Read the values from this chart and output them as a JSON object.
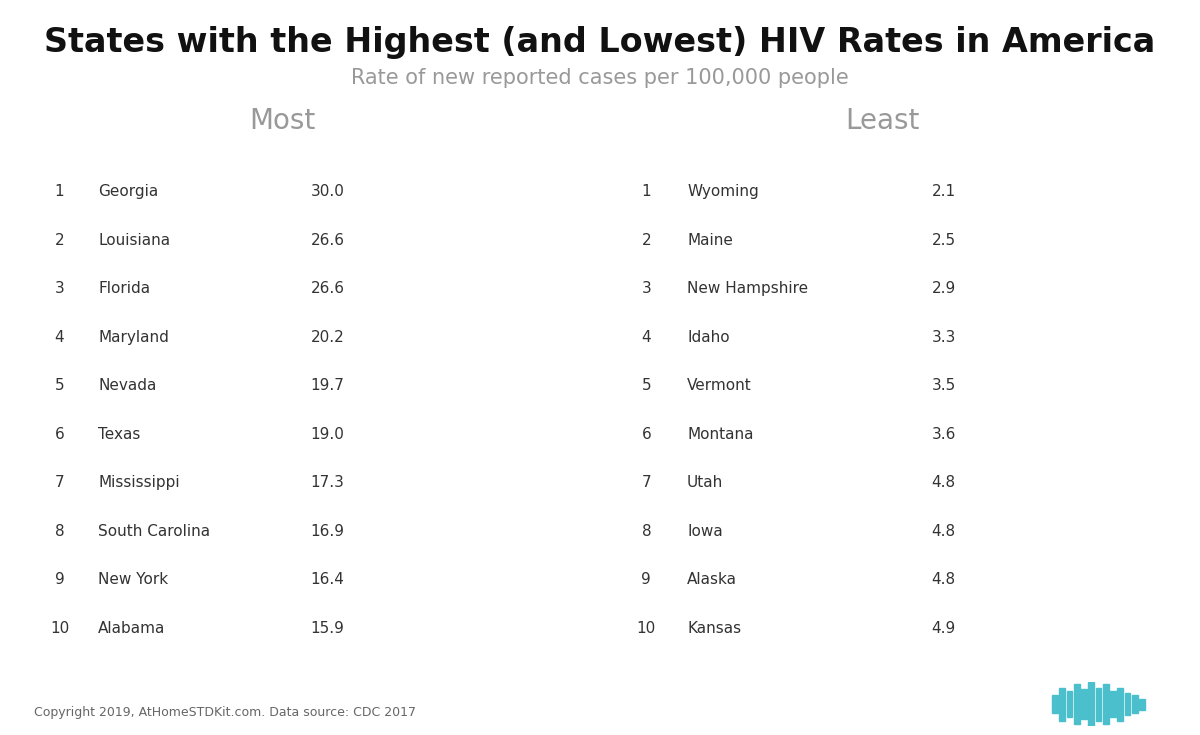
{
  "title": "States with the Highest (and Lowest) HIV Rates in America",
  "subtitle": "Rate of new reported cases per 100,000 people",
  "left_header": "Most",
  "right_header": "Least",
  "footer": "Copyright 2019, AtHomeSTDKit.com. Data source: CDC 2017",
  "header_bg": "#4BBFCC",
  "header_text": "#ffffff",
  "bar_color": "#3DD68C",
  "row_even_color": "#F2F2F2",
  "row_odd_color": "#FFFFFF",
  "text_color": "#333333",
  "most": {
    "ranks": [
      1,
      2,
      3,
      4,
      5,
      6,
      7,
      8,
      9,
      10
    ],
    "states": [
      "Georgia",
      "Louisiana",
      "Florida",
      "Maryland",
      "Nevada",
      "Texas",
      "Mississippi",
      "South Carolina",
      "New York",
      "Alabama"
    ],
    "rates": [
      30.0,
      26.6,
      26.6,
      20.2,
      19.7,
      19.0,
      17.3,
      16.9,
      16.4,
      15.9
    ]
  },
  "least": {
    "ranks": [
      1,
      2,
      3,
      4,
      5,
      6,
      7,
      8,
      9,
      10
    ],
    "states": [
      "Wyoming",
      "Maine",
      "New Hampshire",
      "Idaho",
      "Vermont",
      "Montana",
      "Utah",
      "Iowa",
      "Alaska",
      "Kansas"
    ],
    "rates": [
      2.1,
      2.5,
      2.9,
      3.3,
      3.5,
      3.6,
      4.8,
      4.8,
      4.8,
      4.9
    ]
  },
  "bg_color": "#FFFFFF",
  "title_fontsize": 24,
  "subtitle_fontsize": 15,
  "section_label_fontsize": 20,
  "table_header_fontsize": 11,
  "table_body_fontsize": 11,
  "footer_fontsize": 9,
  "most_bar_max": 33.0,
  "least_bar_max": 6.5
}
